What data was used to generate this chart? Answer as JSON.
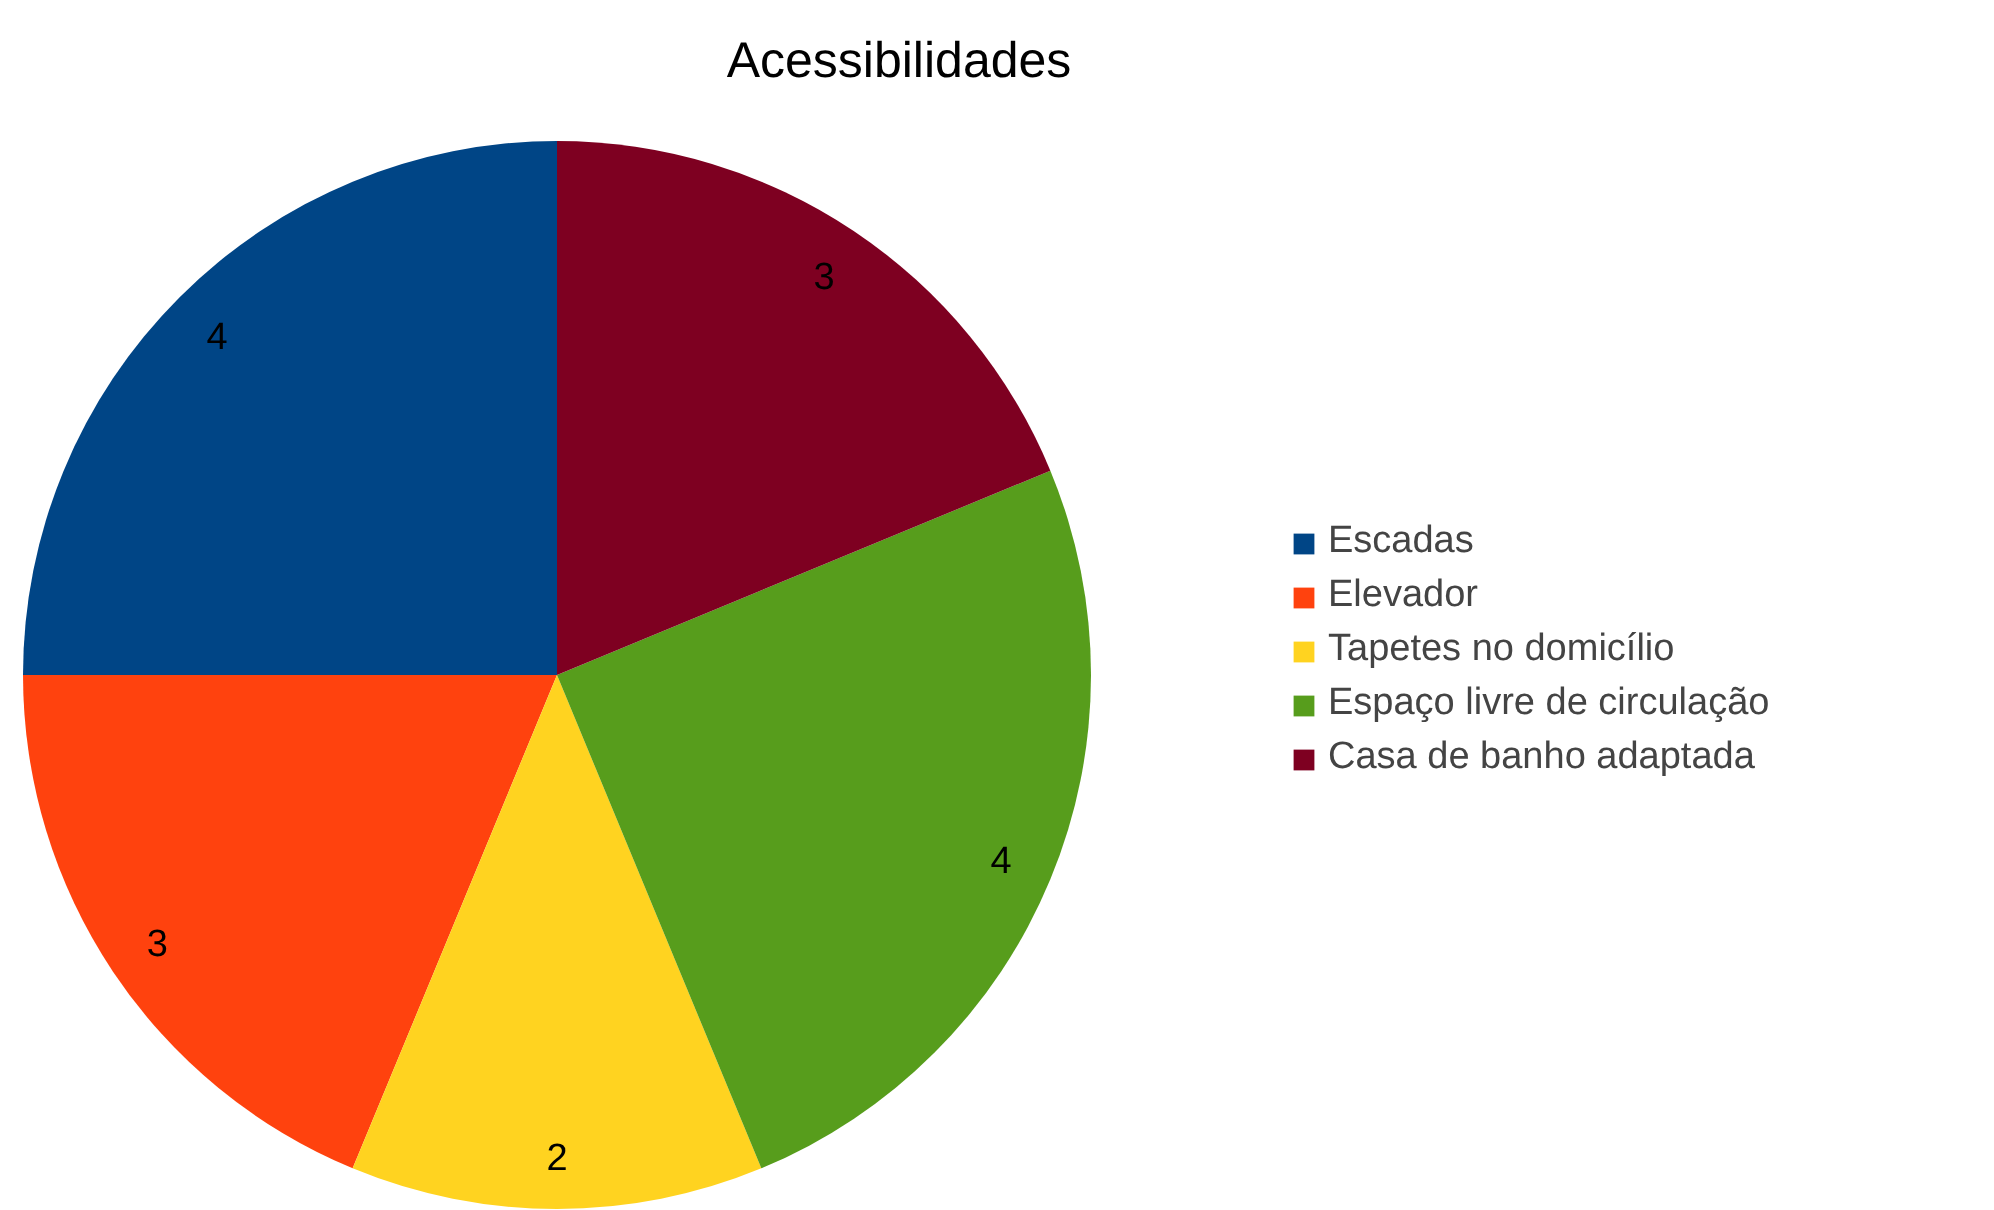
{
  "chart_data": {
    "type": "pie",
    "title": "Acessibilidades",
    "categories": [
      "Escadas",
      "Elevador",
      "Tapetes no domicílio",
      "Espaço livre de circulação",
      "Casa de banho adaptada"
    ],
    "values": [
      4,
      3,
      2,
      4,
      3
    ],
    "colors": [
      "#004586",
      "#ff420e",
      "#ffd320",
      "#579d1c",
      "#7e0021"
    ],
    "data_labels": true,
    "legend": "right"
  }
}
